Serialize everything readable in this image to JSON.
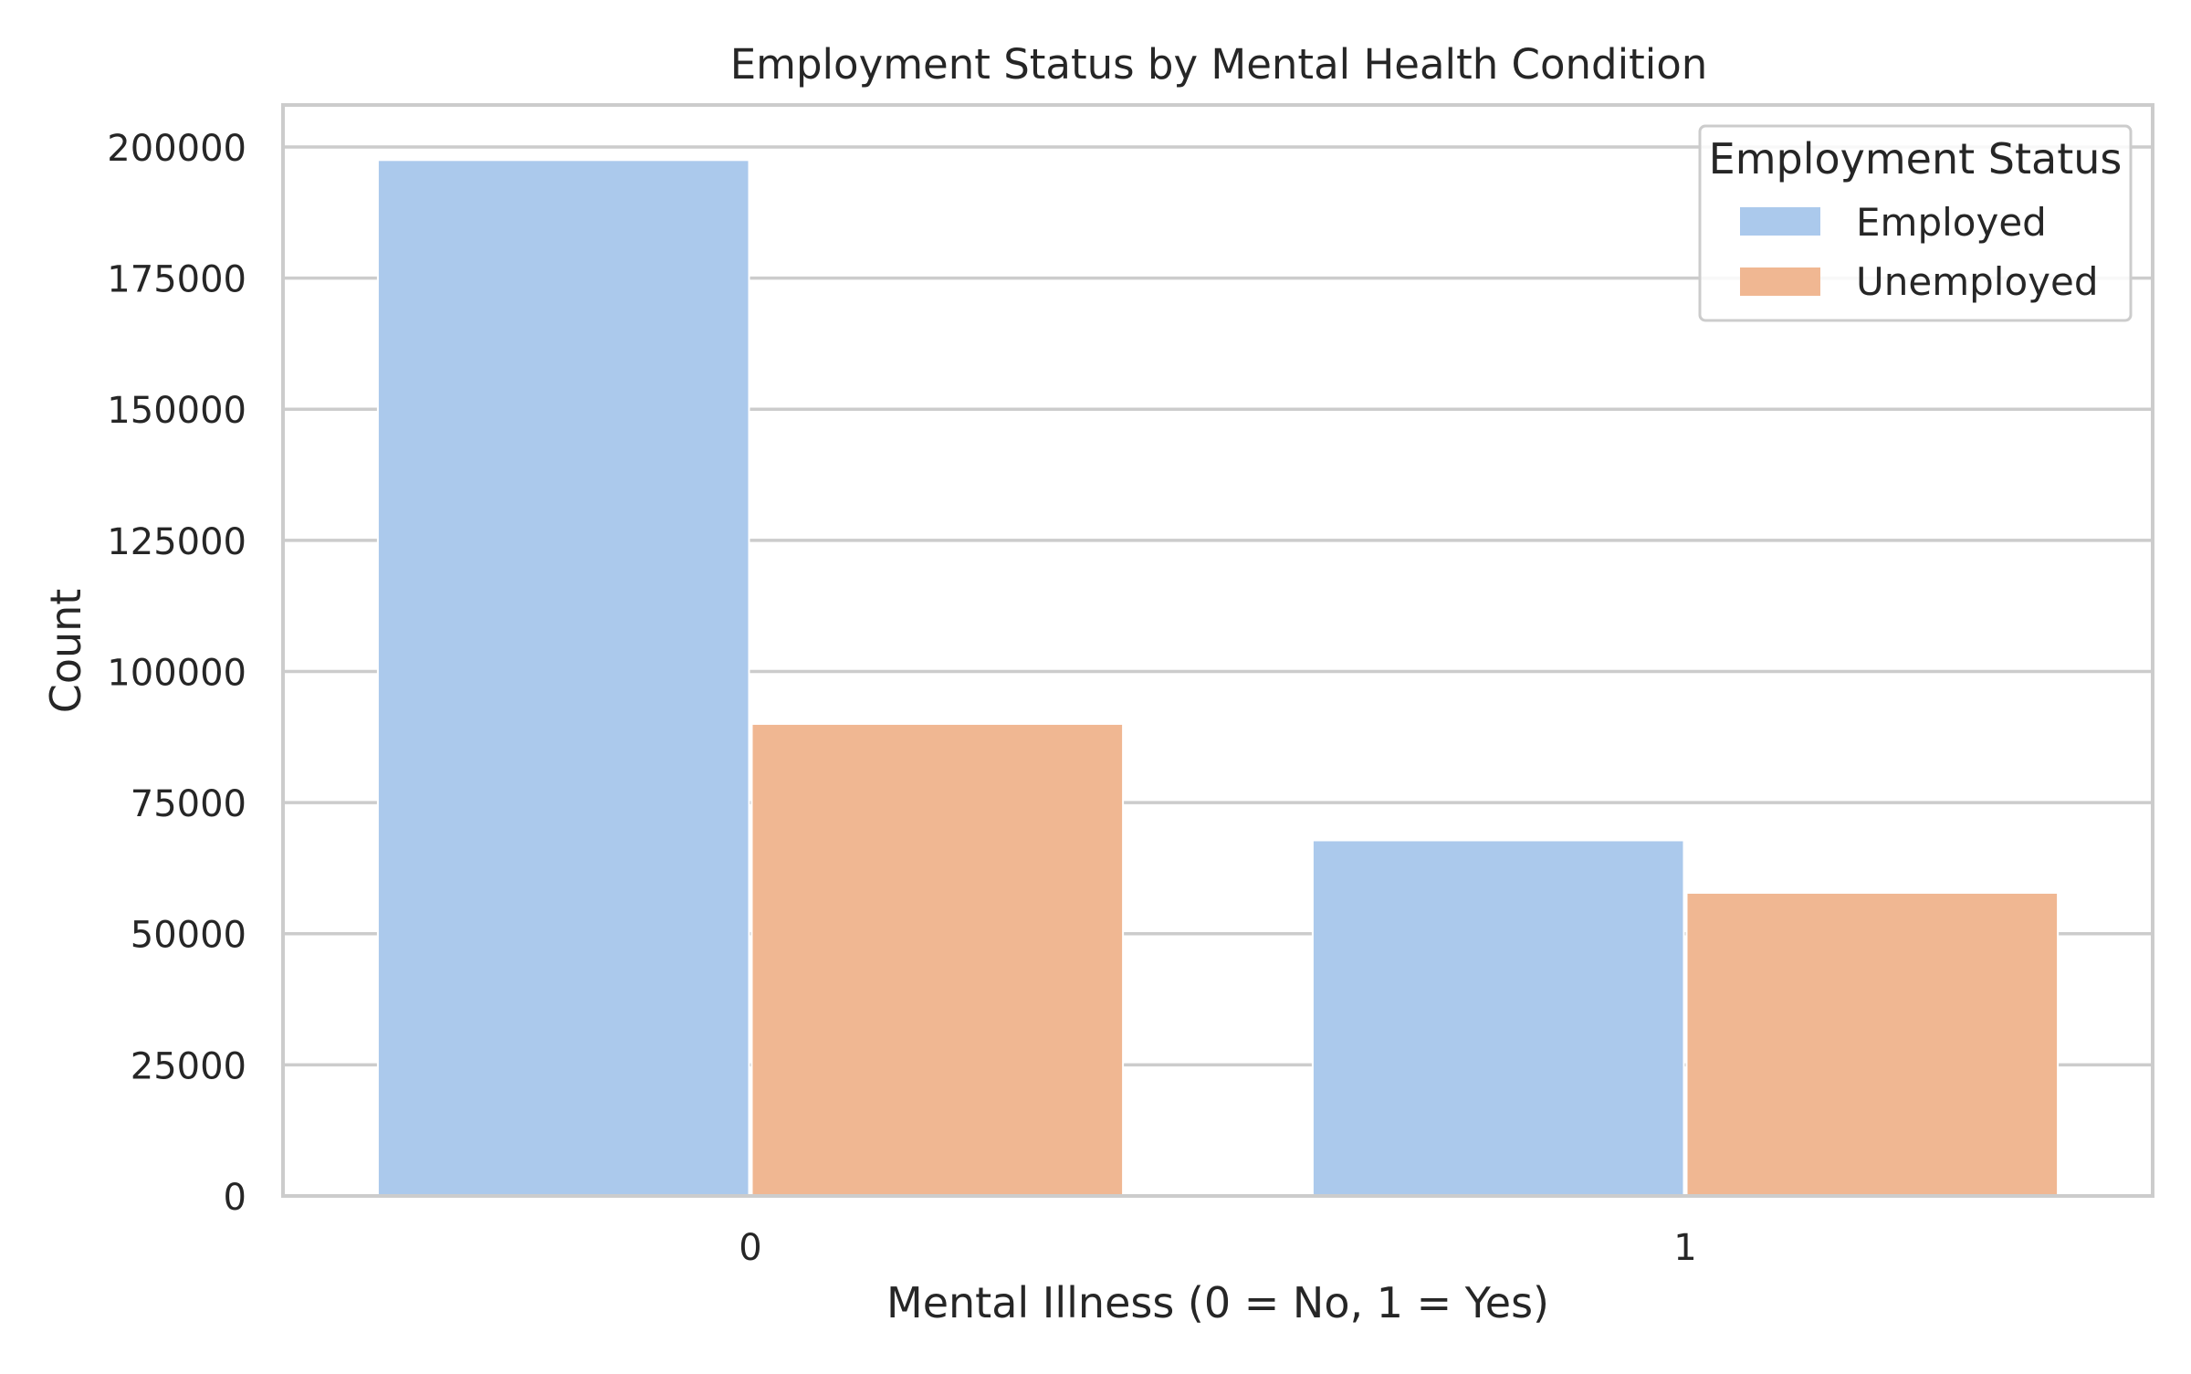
{
  "chart_data": {
    "type": "bar",
    "title": "Employment Status by Mental Health Condition",
    "xlabel": "Mental Illness (0 = No, 1 = Yes)",
    "ylabel": "Count",
    "categories": [
      "0",
      "1"
    ],
    "yticks": [
      0,
      25000,
      50000,
      75000,
      100000,
      125000,
      150000,
      175000,
      200000
    ],
    "ytick_labels": [
      "0",
      "25000",
      "50000",
      "75000",
      "100000",
      "125000",
      "150000",
      "175000",
      "200000"
    ],
    "ylim": [
      0,
      208000
    ],
    "grid": true,
    "series": [
      {
        "name": "Employed",
        "values": [
          197500,
          67800
        ],
        "color": "#abc9ec"
      },
      {
        "name": "Unemployed",
        "values": [
          90000,
          57800
        ],
        "color": "#f0b792"
      }
    ],
    "legend": {
      "title": "Employment Status",
      "placement": "top-right"
    }
  }
}
